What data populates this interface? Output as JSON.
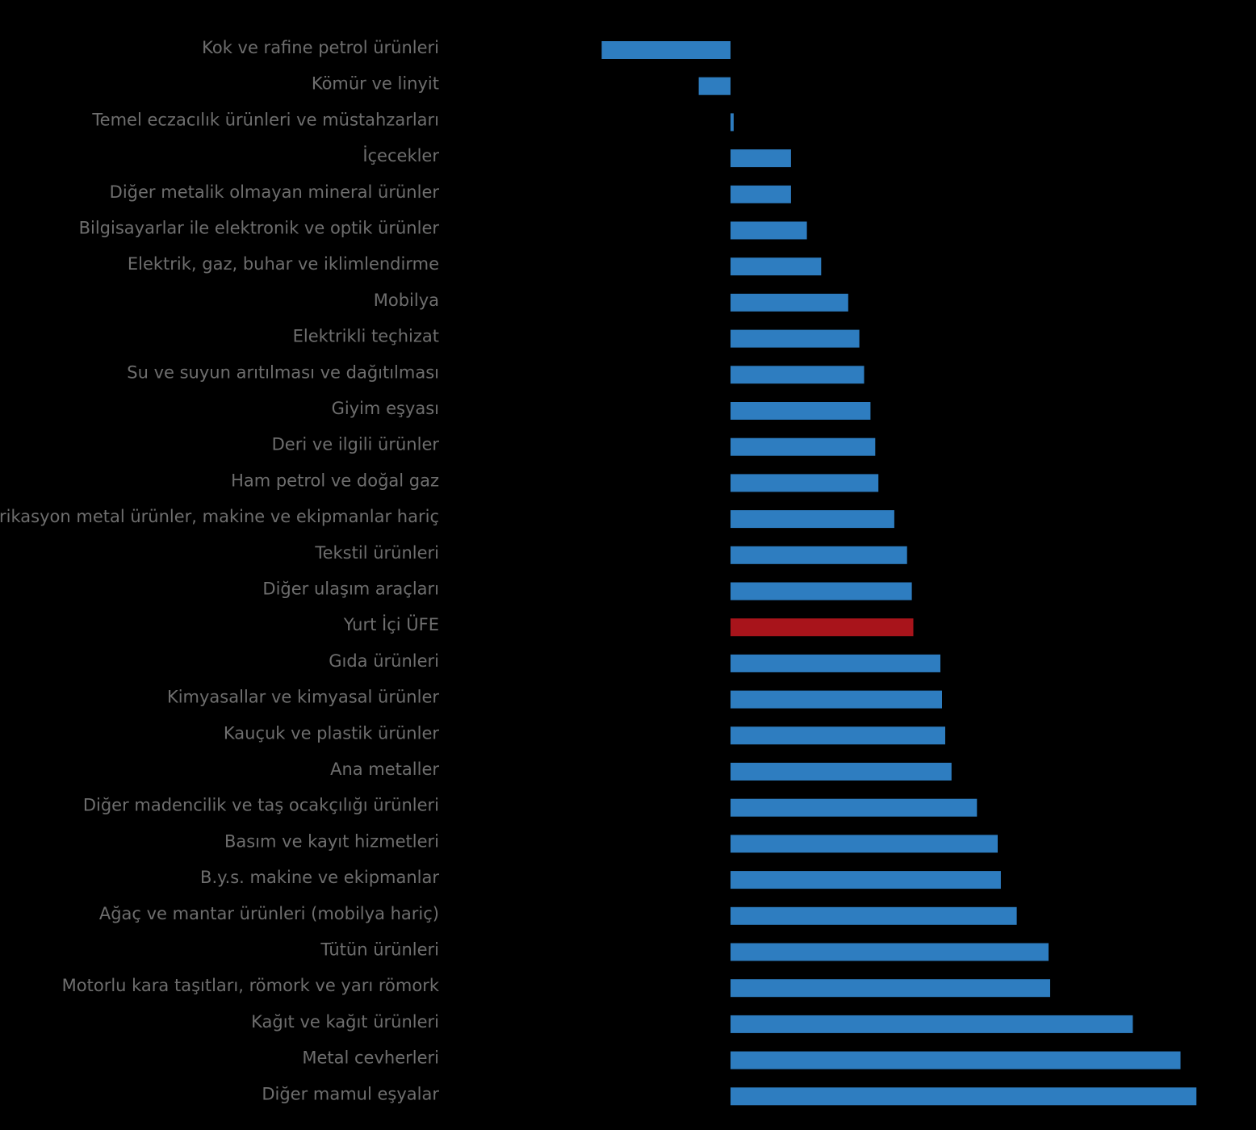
{
  "chart_data": {
    "type": "bar",
    "orientation": "horizontal",
    "title": "",
    "xlabel": "",
    "ylabel": "",
    "grid": false,
    "categories": [
      "Kok ve rafine petrol ürünleri",
      "Kömür ve linyit",
      "Temel eczacılık ürünleri ve müstahzarları",
      "İçecekler",
      "Diğer metalik olmayan mineral ürünler",
      "Bilgisayarlar ile elektronik ve optik ürünler",
      "Elektrik, gaz, buhar ve iklimlendirme",
      "Mobilya",
      "Elektrikli teçhizat",
      "Su ve suyun arıtılması ve dağıtılması",
      "Giyim eşyası",
      "Deri ve ilgili ürünler",
      "Ham petrol ve doğal gaz",
      "Fabrikasyon metal ürünler, makine ve ekipmanlar hariç",
      "Tekstil ürünleri",
      "Diğer ulaşım araçları",
      "Yurt İçi ÜFE",
      "Gıda ürünleri",
      "Kimyasallar ve kimyasal ürünler",
      "Kauçuk ve plastik ürünler",
      "Ana metaller",
      "Diğer madencilik ve taş ocakçılığı ürünleri",
      "Basım ve kayıt hizmetleri",
      "B.y.s. makine ve ekipmanlar",
      "Ağaç ve mantar ürünleri (mobilya hariç)",
      "Tütün ürünleri",
      "Motorlu kara taşıtları, römork ve yarı römork",
      "Kağıt ve kağıt ürünleri",
      "Metal cevherleri",
      "Diğer mamul eşyalar"
    ],
    "values": [
      -8.1,
      -2.0,
      0.2,
      3.8,
      3.8,
      4.8,
      5.7,
      7.4,
      8.1,
      8.4,
      8.8,
      9.1,
      9.3,
      10.3,
      11.1,
      11.4,
      11.5,
      13.2,
      13.3,
      13.5,
      13.9,
      15.5,
      16.8,
      17.0,
      18.0,
      20.0,
      20.1,
      25.3,
      28.3,
      29.3
    ],
    "highlight_category": "Yurt İçi ÜFE",
    "xlim": [
      -10,
      30
    ],
    "colors": {
      "default_bar": "#2e7dc0",
      "highlight_bar": "#a8141b",
      "label": "#6e6e6e",
      "background": "#000000"
    }
  }
}
